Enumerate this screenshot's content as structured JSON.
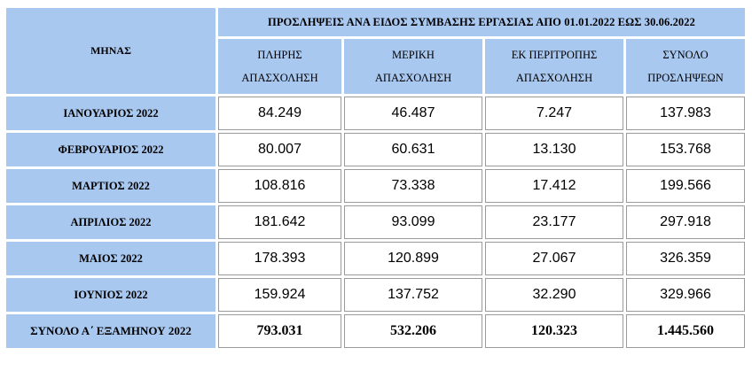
{
  "table": {
    "corner_label": "ΜΗΝΑΣ",
    "title": "ΠΡΟΣΛΗΨΕΙΣ ΑΝΑ ΕΙΔΟΣ  ΣΥΜΒΑΣΗΣ ΕΡΓΑΣΙΑΣ ΑΠΟ  01.01.2022  ΕΩΣ  30.06.2022",
    "columns": [
      {
        "line1": "ΠΛΗΡΗΣ",
        "line2": "ΑΠΑΣΧΟΛΗΣΗ"
      },
      {
        "line1": "ΜΕΡΙΚΗ",
        "line2": "ΑΠΑΣΧΟΛΗΣΗ"
      },
      {
        "line1": "ΕΚ ΠΕΡΙΤΡΟΠΗΣ",
        "line2": "ΑΠΑΣΧΟΛΗΣΗ"
      },
      {
        "line1": "ΣΥΝΟΛΟ",
        "line2": "ΠΡΟΣΛΗΨΕΩΝ"
      }
    ],
    "rows": [
      {
        "month": "ΙΑΝΟΥΑΡΙΟΣ 2022",
        "values": [
          "84.249",
          "46.487",
          "7.247",
          "137.983"
        ]
      },
      {
        "month": "ΦΕΒΡΟΥΑΡΙΟΣ 2022",
        "values": [
          "80.007",
          "60.631",
          "13.130",
          "153.768"
        ]
      },
      {
        "month": "ΜΑΡΤΙΟΣ 2022",
        "values": [
          "108.816",
          "73.338",
          "17.412",
          "199.566"
        ]
      },
      {
        "month": "ΑΠΡΙΛΙΟΣ 2022",
        "values": [
          "181.642",
          "93.099",
          "23.177",
          "297.918"
        ]
      },
      {
        "month": "ΜΑΙΟΣ 2022",
        "values": [
          "178.393",
          "120.899",
          "27.067",
          "326.359"
        ]
      },
      {
        "month": "ΙΟΥΝΙΟΣ 2022",
        "values": [
          "159.924",
          "137.752",
          "32.290",
          "329.966"
        ]
      }
    ],
    "total": {
      "label": "ΣΥΝΟΛΟ  Α΄  ΕΞΑΜΗΝΟΥ 2022",
      "values": [
        "793.031",
        "532.206",
        "120.323",
        "1.445.560"
      ]
    }
  },
  "colors": {
    "header_bg": "#a9c8f0",
    "cell_bg": "#ffffff"
  }
}
